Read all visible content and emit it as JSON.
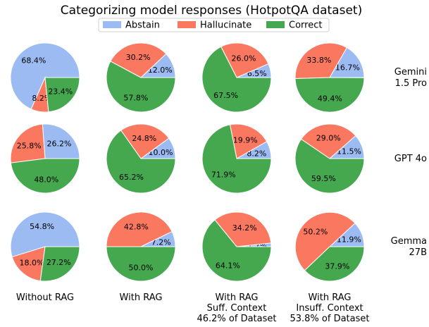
{
  "chart_data": {
    "type": "pie",
    "title": "Categorizing model responses (HotpotQA dataset)",
    "legend": {
      "position": "top-center",
      "entries": [
        {
          "name": "Abstain",
          "color": "#9bbbf2"
        },
        {
          "name": "Hallucinate",
          "color": "#fa7760"
        },
        {
          "name": "Correct",
          "color": "#45a84f"
        }
      ]
    },
    "columns": [
      {
        "lines": [
          "Without RAG"
        ]
      },
      {
        "lines": [
          "With RAG"
        ]
      },
      {
        "lines": [
          "With RAG",
          "Suff. Context",
          "46.2% of Dataset"
        ]
      },
      {
        "lines": [
          "With RAG",
          "Insuff. Context",
          "53.8% of Dataset"
        ]
      }
    ],
    "rows": [
      {
        "lines": [
          "Gemini",
          "1.5 Pro"
        ],
        "pies": [
          {
            "abstain": 68.4,
            "hallucinate": 8.2,
            "correct": 23.4
          },
          {
            "abstain": 12.0,
            "hallucinate": 30.2,
            "correct": 57.8
          },
          {
            "abstain": 6.5,
            "hallucinate": 26.0,
            "correct": 67.5
          },
          {
            "abstain": 16.7,
            "hallucinate": 33.8,
            "correct": 49.4
          }
        ]
      },
      {
        "lines": [
          "GPT 4o"
        ],
        "pies": [
          {
            "abstain": 26.2,
            "hallucinate": 25.8,
            "correct": 48.0
          },
          {
            "abstain": 10.0,
            "hallucinate": 24.8,
            "correct": 65.2
          },
          {
            "abstain": 8.2,
            "hallucinate": 19.9,
            "correct": 71.9
          },
          {
            "abstain": 11.5,
            "hallucinate": 29.0,
            "correct": 59.5
          }
        ]
      },
      {
        "lines": [
          "Gemma",
          "27B"
        ],
        "pies": [
          {
            "abstain": 54.8,
            "hallucinate": 18.0,
            "correct": 27.2
          },
          {
            "abstain": 7.2,
            "hallucinate": 42.8,
            "correct": 50.0
          },
          {
            "abstain": 1.7,
            "hallucinate": 34.2,
            "correct": 64.1
          },
          {
            "abstain": 11.9,
            "hallucinate": 50.2,
            "correct": 37.9
          }
        ]
      }
    ]
  }
}
